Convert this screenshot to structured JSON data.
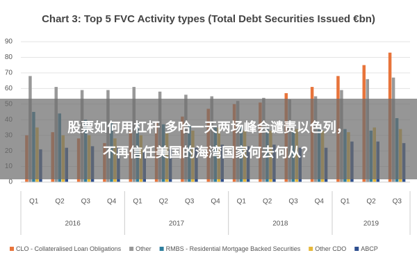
{
  "chart_data": {
    "type": "bar",
    "title": "Chart 3: Top 5 FVC Activity types (Total Debt Securities Issued €bn)",
    "categories": [
      "Q1",
      "Q2",
      "Q3",
      "Q4",
      "Q1",
      "Q2",
      "Q3",
      "Q4",
      "Q1",
      "Q2",
      "Q3",
      "Q4",
      "Q1",
      "Q2",
      "Q3"
    ],
    "category_years": [
      "2016",
      "2016",
      "2016",
      "2016",
      "2017",
      "2017",
      "2017",
      "2017",
      "2018",
      "2018",
      "2018",
      "2018",
      "2019",
      "2019",
      "2019"
    ],
    "series": [
      {
        "name": "CLO - Collateralised Loan Obligations",
        "color": "#e8743b",
        "values": [
          30,
          32,
          28,
          25,
          33,
          38,
          42,
          47,
          50,
          51,
          57,
          61,
          68,
          75,
          83
        ]
      },
      {
        "name": "Other",
        "color": "#999999",
        "values": [
          68,
          61,
          59,
          59,
          61,
          58,
          56,
          55,
          52,
          54,
          53,
          55,
          59,
          66,
          67
        ]
      },
      {
        "name": "RMBS - Residential Mortgage Backed Securities",
        "color": "#2f7f9e",
        "values": [
          45,
          44,
          40,
          38,
          38,
          37,
          36,
          35,
          36,
          34,
          33,
          34,
          34,
          33,
          41
        ]
      },
      {
        "name": "Other CDO",
        "color": "#e6b83a",
        "values": [
          35,
          30,
          30,
          28,
          30,
          32,
          33,
          35,
          33,
          33,
          34,
          33,
          32,
          35,
          34
        ]
      },
      {
        "name": "ABCP",
        "color": "#2e4f8f",
        "values": [
          21,
          22,
          23,
          22,
          20,
          21,
          22,
          24,
          23,
          24,
          22,
          22,
          26,
          26,
          25
        ]
      }
    ],
    "ylim": [
      0,
      90
    ],
    "yticks": [
      0,
      10,
      20,
      30,
      40,
      50,
      60,
      70,
      80,
      90
    ],
    "grid": true
  },
  "overlay": {
    "lines": [
      "股票如何用杠杆 多哈一天两场峰会谴责以色列，",
      "不再信任美国的海湾国家何去何从？"
    ]
  }
}
